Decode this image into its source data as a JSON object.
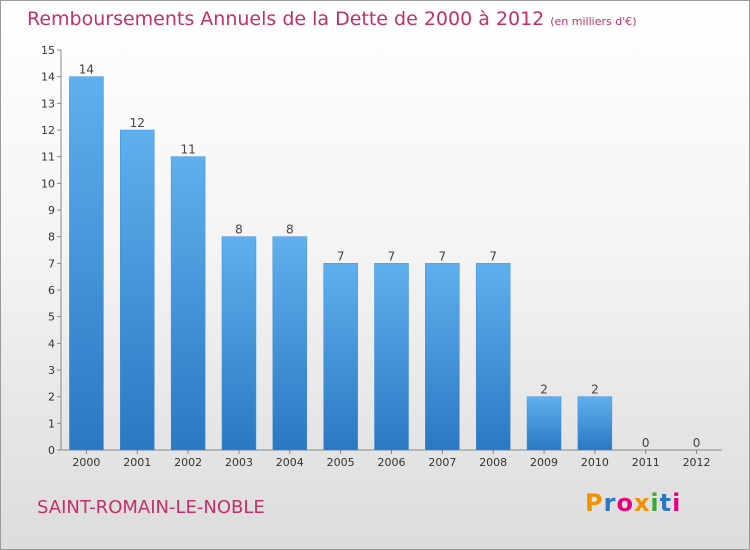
{
  "chart_data": {
    "type": "bar",
    "title": "Remboursements Annuels de la Dette de 2000 à 2012",
    "subtitle": "(en milliers d'€)",
    "categories": [
      "2000",
      "2001",
      "2002",
      "2003",
      "2004",
      "2005",
      "2006",
      "2007",
      "2008",
      "2009",
      "2010",
      "2011",
      "2012"
    ],
    "values": [
      14,
      12,
      11,
      8,
      8,
      7,
      7,
      7,
      7,
      2,
      2,
      0,
      0
    ],
    "ylim": [
      0,
      15
    ],
    "yticks": [
      0,
      1,
      2,
      3,
      4,
      5,
      6,
      7,
      8,
      9,
      10,
      11,
      12,
      13,
      14,
      15
    ],
    "xlabel": "",
    "ylabel": "",
    "grid": false,
    "bar_color": "#4d9fe0",
    "bar_color_dark": "#2a78c2"
  },
  "footer": {
    "commune": "SAINT-ROMAIN-LE-NOBLE",
    "logo_letters": [
      "P",
      "r",
      "o",
      "x",
      "i",
      "t",
      "i"
    ],
    "logo_colors": [
      "#f39200",
      "#2a78c2",
      "#e5007e",
      "#f39200",
      "#3aaa35",
      "#2a78c2",
      "#e5007e"
    ]
  },
  "colors": {
    "title": "#c2306a"
  }
}
